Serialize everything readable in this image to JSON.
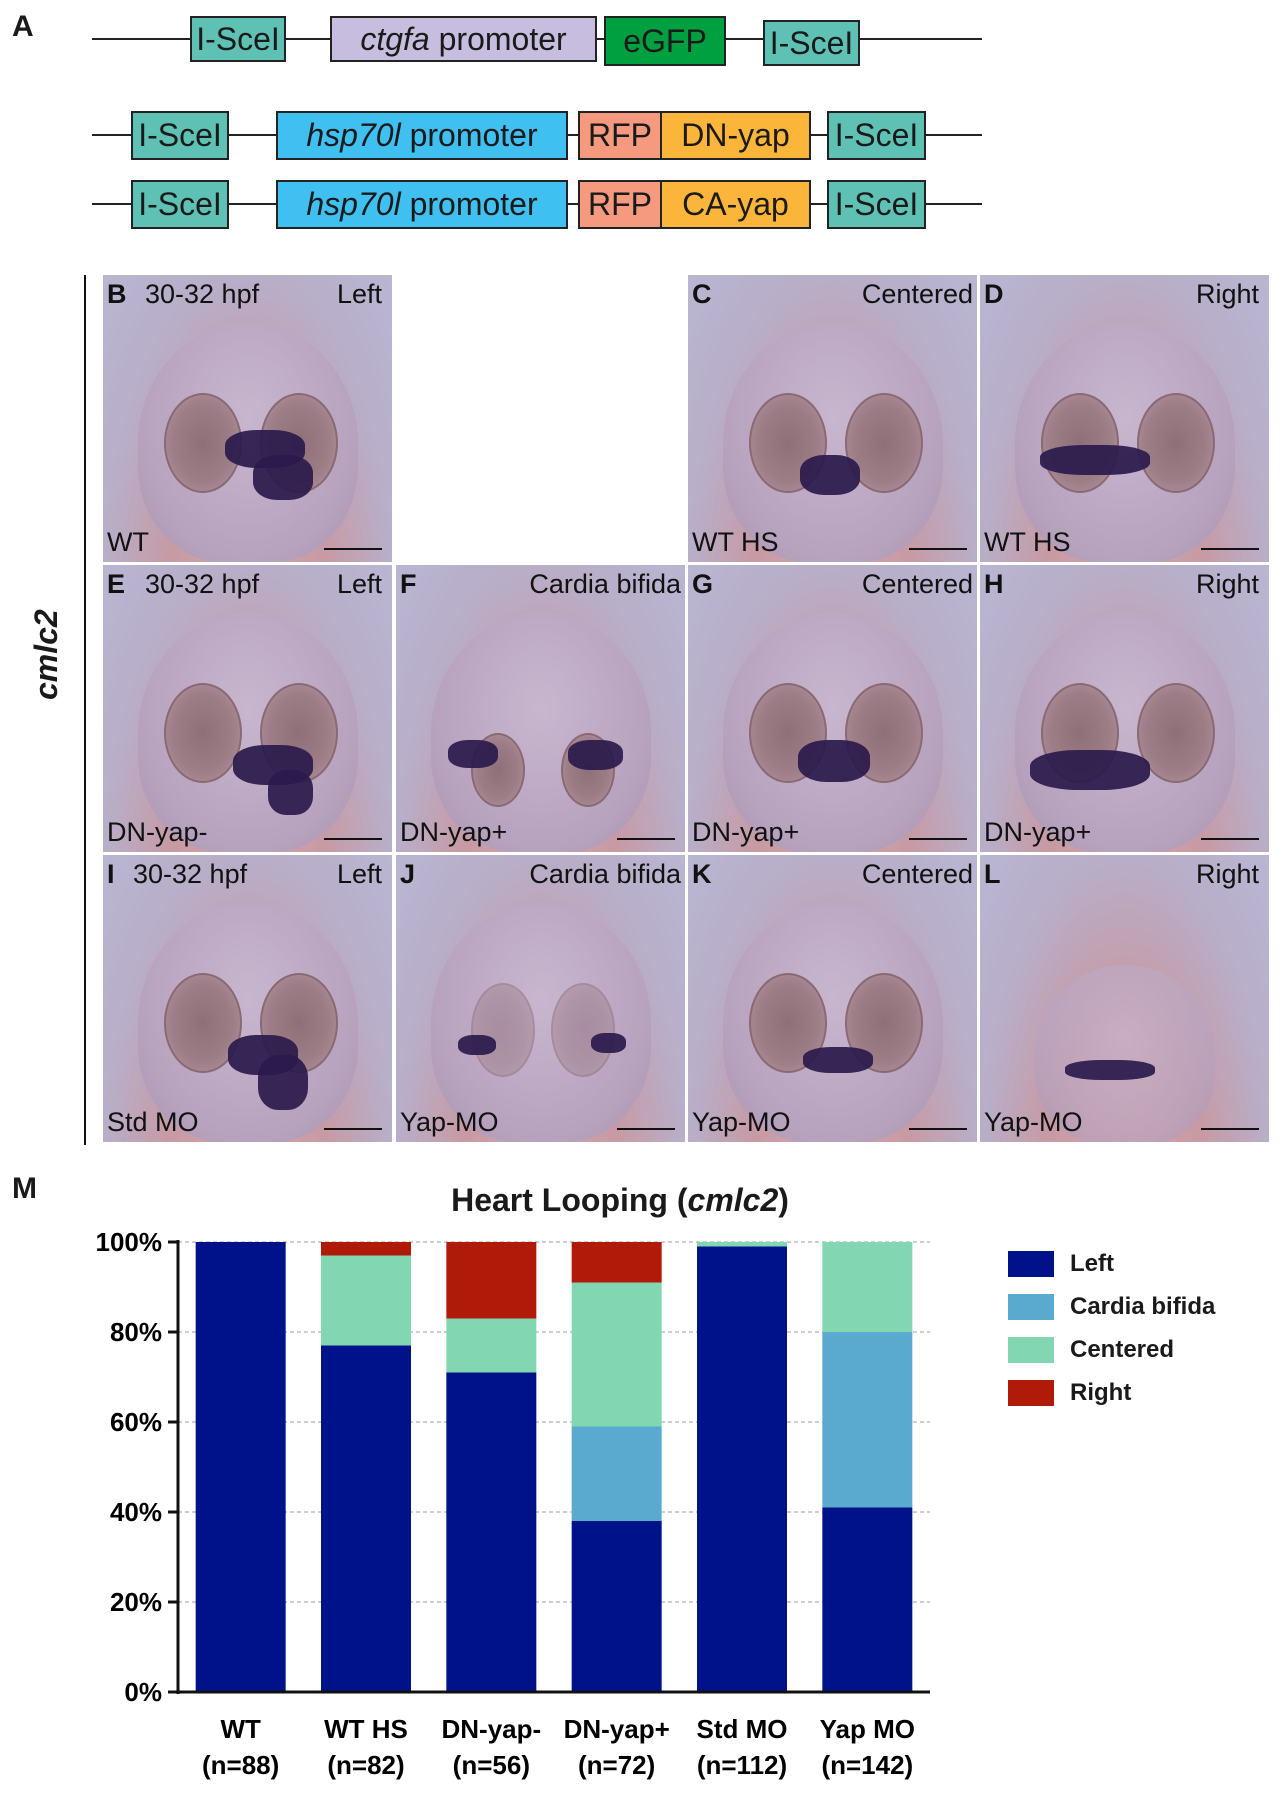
{
  "panels": {
    "A": "A",
    "B": "B",
    "C": "C",
    "D": "D",
    "E": "E",
    "F": "F",
    "G": "G",
    "H": "H",
    "I": "I",
    "J": "J",
    "K": "K",
    "L": "L",
    "M": "M"
  },
  "constructs": {
    "isce": "I-SceI",
    "ctgfa_italic": "ctgfa",
    "promoter": " promoter",
    "egfp": "eGFP",
    "hsp_italic": "hsp70l",
    "rfp": "RFP",
    "dn_yap": "DN-yap",
    "ca_yap": "CA-yap"
  },
  "side_label": "cmlc2",
  "images": {
    "B": {
      "stage": "30-32 hpf",
      "pos": "Left",
      "cond": "WT"
    },
    "C": {
      "pos": "Centered",
      "cond": "WT HS"
    },
    "D": {
      "pos": "Right",
      "cond": "WT HS"
    },
    "E": {
      "stage": "30-32 hpf",
      "pos": "Left",
      "cond": "DN-yap-"
    },
    "F": {
      "pos": "Cardia bifida",
      "cond": "DN-yap+"
    },
    "G": {
      "pos": "Centered",
      "cond": "DN-yap+"
    },
    "H": {
      "pos": "Right",
      "cond": "DN-yap+"
    },
    "I": {
      "stage": "30-32 hpf",
      "pos": "Left",
      "cond": "Std MO"
    },
    "J": {
      "pos": "Cardia bifida",
      "cond": "Yap-MO"
    },
    "K": {
      "pos": "Centered",
      "cond": "Yap-MO"
    },
    "L": {
      "pos": "Right",
      "cond": "Yap-MO"
    }
  },
  "chart_data": {
    "type": "bar",
    "stacked": true,
    "title_prefix": "Heart Looping (",
    "title_italic": "cmlc2",
    "title_suffix": ")",
    "categories": [
      "WT",
      "WT HS",
      "DN-yap-",
      "DN-yap+",
      "Std MO",
      "Yap MO"
    ],
    "category_n": [
      "(n=88)",
      "(n=82)",
      "(n=56)",
      "(n=72)",
      "(n=112)",
      "(n=142)"
    ],
    "yticks": [
      "0%",
      "20%",
      "40%",
      "60%",
      "80%",
      "100%"
    ],
    "ylim": [
      0,
      100
    ],
    "grid": true,
    "legend_position": "right",
    "series": [
      {
        "name": "Left",
        "color": "#00128a",
        "values": [
          100,
          77,
          71,
          38,
          99,
          41
        ]
      },
      {
        "name": "Cardia bifida",
        "color": "#5aa9cf",
        "values": [
          0,
          0,
          0,
          21,
          0,
          39
        ]
      },
      {
        "name": "Centered",
        "color": "#82d7b2",
        "values": [
          0,
          20,
          12,
          32,
          1,
          20
        ]
      },
      {
        "name": "Right",
        "color": "#b01a08",
        "values": [
          0,
          3,
          17,
          9,
          0,
          0
        ]
      }
    ]
  }
}
